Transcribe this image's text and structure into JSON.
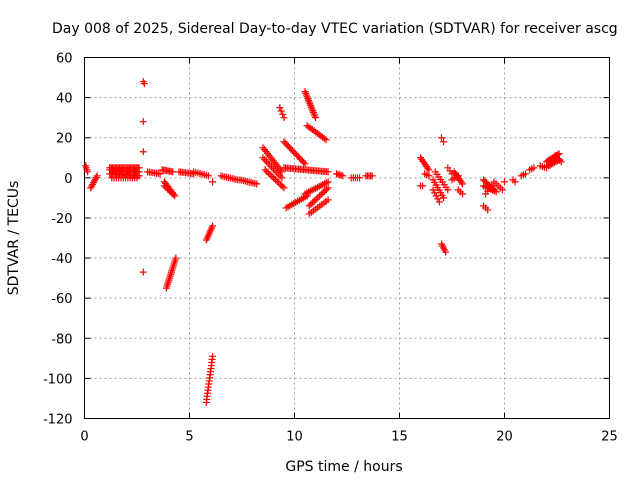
{
  "chart_data": {
    "type": "scatter",
    "title": "Day 008 of 2025, Sidereal Day-to-day VTEC variation (SDTVAR) for receiver ascg",
    "xlabel": "GPS time / hours",
    "ylabel": "SDTVAR / TECUs",
    "xlim": [
      0,
      25
    ],
    "ylim": [
      -120,
      60
    ],
    "xticks": [
      0,
      5,
      10,
      15,
      20,
      25
    ],
    "yticks": [
      -120,
      -100,
      -80,
      -60,
      -40,
      -20,
      0,
      20,
      40,
      60
    ],
    "grid": true,
    "marker": "+",
    "color": "#ff0000",
    "segments": [
      {
        "x0": 0.05,
        "y0": 6,
        "x1": 0.15,
        "y1": 3,
        "n": 4
      },
      {
        "x0": 0.3,
        "y0": -5,
        "x1": 0.6,
        "y1": 1,
        "n": 8
      },
      {
        "x0": 1.2,
        "y0": 5,
        "x1": 2.6,
        "y1": 5,
        "n": 22
      },
      {
        "x0": 1.2,
        "y0": 2,
        "x1": 2.6,
        "y1": 1,
        "n": 22
      },
      {
        "x0": 1.2,
        "y0": 4,
        "x1": 2.6,
        "y1": 3,
        "n": 18
      },
      {
        "x0": 1.3,
        "y0": 0,
        "x1": 2.5,
        "y1": 0,
        "n": 12
      },
      {
        "x0": 2.8,
        "y0": 48,
        "x1": 2.85,
        "y1": 47,
        "n": 2
      },
      {
        "x0": 2.8,
        "y0": 28,
        "x1": 2.8,
        "y1": 28,
        "n": 1
      },
      {
        "x0": 2.8,
        "y0": 13,
        "x1": 2.8,
        "y1": 13,
        "n": 1
      },
      {
        "x0": 2.8,
        "y0": -47,
        "x1": 2.8,
        "y1": -47,
        "n": 1
      },
      {
        "x0": 3.0,
        "y0": 3,
        "x1": 3.6,
        "y1": 2,
        "n": 8
      },
      {
        "x0": 3.7,
        "y0": 4,
        "x1": 4.2,
        "y1": 3,
        "n": 8
      },
      {
        "x0": 3.8,
        "y0": -2,
        "x1": 4.3,
        "y1": -9,
        "n": 10
      },
      {
        "x0": 3.8,
        "y0": -4,
        "x1": 4.2,
        "y1": -8,
        "n": 6
      },
      {
        "x0": 3.9,
        "y0": -55,
        "x1": 4.35,
        "y1": -40,
        "n": 16
      },
      {
        "x0": 4.5,
        "y0": 3,
        "x1": 5.2,
        "y1": 2,
        "n": 10
      },
      {
        "x0": 5.2,
        "y0": 3,
        "x1": 5.9,
        "y1": 1,
        "n": 8
      },
      {
        "x0": 5.8,
        "y0": -31,
        "x1": 6.1,
        "y1": -24,
        "n": 8
      },
      {
        "x0": 5.8,
        "y0": -112,
        "x1": 6.1,
        "y1": -89,
        "n": 16
      },
      {
        "x0": 6.1,
        "y0": -2,
        "x1": 6.1,
        "y1": -2,
        "n": 1
      },
      {
        "x0": 6.5,
        "y0": 1,
        "x1": 7.3,
        "y1": -1,
        "n": 10
      },
      {
        "x0": 7.4,
        "y0": -1,
        "x1": 8.2,
        "y1": -3,
        "n": 10
      },
      {
        "x0": 8.5,
        "y0": 15,
        "x1": 9.4,
        "y1": 3,
        "n": 14
      },
      {
        "x0": 8.5,
        "y0": 10,
        "x1": 9.4,
        "y1": 0,
        "n": 12
      },
      {
        "x0": 8.6,
        "y0": 4,
        "x1": 9.5,
        "y1": -5,
        "n": 12
      },
      {
        "x0": 9.3,
        "y0": 35,
        "x1": 9.5,
        "y1": 30,
        "n": 4
      },
      {
        "x0": 9.5,
        "y0": 18,
        "x1": 10.5,
        "y1": 7,
        "n": 16
      },
      {
        "x0": 9.5,
        "y0": 5,
        "x1": 11.6,
        "y1": 3,
        "n": 28
      },
      {
        "x0": 9.6,
        "y0": -15,
        "x1": 10.6,
        "y1": -9,
        "n": 12
      },
      {
        "x0": 10.5,
        "y0": 43,
        "x1": 11.0,
        "y1": 30,
        "n": 16
      },
      {
        "x0": 10.6,
        "y0": 26,
        "x1": 11.5,
        "y1": 19,
        "n": 12
      },
      {
        "x0": 10.5,
        "y0": -8,
        "x1": 11.6,
        "y1": -2,
        "n": 14
      },
      {
        "x0": 10.7,
        "y0": -14,
        "x1": 11.6,
        "y1": -5,
        "n": 12
      },
      {
        "x0": 10.7,
        "y0": -18,
        "x1": 11.6,
        "y1": -11,
        "n": 10
      },
      {
        "x0": 12.0,
        "y0": 2,
        "x1": 12.3,
        "y1": 1,
        "n": 5
      },
      {
        "x0": 12.7,
        "y0": 0,
        "x1": 13.1,
        "y1": 0,
        "n": 5
      },
      {
        "x0": 13.4,
        "y0": 1,
        "x1": 13.7,
        "y1": 1,
        "n": 5
      },
      {
        "x0": 16.0,
        "y0": 10,
        "x1": 16.4,
        "y1": 4,
        "n": 8
      },
      {
        "x0": 16.2,
        "y0": 2,
        "x1": 16.4,
        "y1": 1,
        "n": 3
      },
      {
        "x0": 16.0,
        "y0": -4,
        "x1": 16.1,
        "y1": -4,
        "n": 2
      },
      {
        "x0": 16.6,
        "y0": -1,
        "x1": 17.1,
        "y1": -10,
        "n": 8
      },
      {
        "x0": 16.7,
        "y0": 3,
        "x1": 17.3,
        "y1": -6,
        "n": 8
      },
      {
        "x0": 16.6,
        "y0": -6,
        "x1": 16.9,
        "y1": -12,
        "n": 5
      },
      {
        "x0": 17.0,
        "y0": 20,
        "x1": 17.1,
        "y1": 18,
        "n": 2
      },
      {
        "x0": 17.0,
        "y0": -33,
        "x1": 17.2,
        "y1": -37,
        "n": 5
      },
      {
        "x0": 17.3,
        "y0": 5,
        "x1": 17.5,
        "y1": 2,
        "n": 3
      },
      {
        "x0": 17.6,
        "y0": 3,
        "x1": 18.0,
        "y1": -3,
        "n": 8
      },
      {
        "x0": 17.5,
        "y0": -1,
        "x1": 17.8,
        "y1": 1,
        "n": 4
      },
      {
        "x0": 17.8,
        "y0": -6,
        "x1": 18.0,
        "y1": -8,
        "n": 3
      },
      {
        "x0": 19.0,
        "y0": -1,
        "x1": 19.5,
        "y1": -6,
        "n": 8
      },
      {
        "x0": 19.0,
        "y0": -4,
        "x1": 19.6,
        "y1": -7,
        "n": 8
      },
      {
        "x0": 19.1,
        "y0": -8,
        "x1": 19.4,
        "y1": -4,
        "n": 4
      },
      {
        "x0": 19.0,
        "y0": -14,
        "x1": 19.2,
        "y1": -16,
        "n": 3
      },
      {
        "x0": 19.5,
        "y0": -2,
        "x1": 19.9,
        "y1": -6,
        "n": 5
      },
      {
        "x0": 20.0,
        "y0": -2,
        "x1": 20.0,
        "y1": -2,
        "n": 1
      },
      {
        "x0": 20.4,
        "y0": -1,
        "x1": 20.5,
        "y1": -2,
        "n": 2
      },
      {
        "x0": 20.8,
        "y0": 1,
        "x1": 21.0,
        "y1": 2,
        "n": 3
      },
      {
        "x0": 21.2,
        "y0": 4,
        "x1": 21.4,
        "y1": 5,
        "n": 3
      },
      {
        "x0": 21.7,
        "y0": 6,
        "x1": 22.0,
        "y1": 5,
        "n": 4
      },
      {
        "x0": 22.0,
        "y0": 8,
        "x1": 22.6,
        "y1": 12,
        "n": 10
      },
      {
        "x0": 22.1,
        "y0": 6,
        "x1": 22.6,
        "y1": 9,
        "n": 8
      },
      {
        "x0": 22.4,
        "y0": 11,
        "x1": 22.7,
        "y1": 8,
        "n": 5
      }
    ]
  }
}
